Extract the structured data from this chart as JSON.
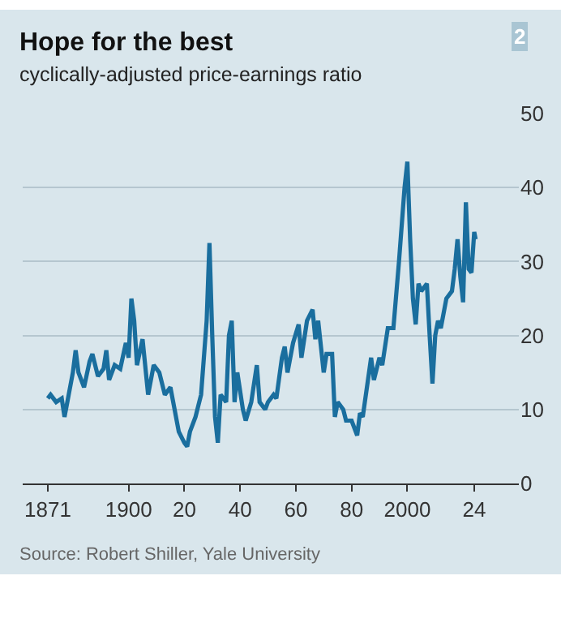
{
  "chart_data": {
    "type": "line",
    "title": "Hope for the best",
    "subtitle": "cyclically-adjusted price-earnings ratio",
    "annotations": [
      "2",
      "Source: Robert Shiller, Yale University"
    ],
    "x": [
      1871,
      1872,
      1874,
      1876,
      1877,
      1878,
      1880,
      1881,
      1882,
      1884,
      1886,
      1887,
      1889,
      1891,
      1892,
      1893,
      1895,
      1897,
      1899,
      1900,
      1901,
      1902,
      1903,
      1905,
      1907,
      1909,
      1911,
      1913,
      1915,
      1917,
      1918,
      1920,
      1921,
      1922,
      1924,
      1926,
      1928,
      1929,
      1930,
      1931,
      1932,
      1933,
      1935,
      1936,
      1937,
      1938,
      1939,
      1941,
      1942,
      1944,
      1946,
      1947,
      1949,
      1950,
      1952,
      1953,
      1955,
      1956,
      1957,
      1959,
      1961,
      1962,
      1964,
      1966,
      1967,
      1968,
      1970,
      1971,
      1973,
      1974,
      1975,
      1977,
      1978,
      1980,
      1982,
      1983,
      1984,
      1987,
      1988,
      1990,
      1991,
      1993,
      1995,
      1997,
      1998,
      1999,
      2000,
      2001,
      2002,
      2003,
      2004,
      2005,
      2007,
      2008,
      2009,
      2010,
      2011,
      2012,
      2014,
      2016,
      2017,
      2018,
      2019,
      2020,
      2021,
      2022,
      2023,
      2024,
      2024.5
    ],
    "series": [
      {
        "color": "#1a6e9e",
        "values": [
          11.5,
          12,
          11,
          11.5,
          9,
          11,
          15,
          18,
          15,
          13,
          16.5,
          17.5,
          14.5,
          15.5,
          18,
          14,
          16,
          15.5,
          19,
          17,
          25,
          22,
          16,
          19.5,
          12,
          16,
          15,
          12,
          13,
          9,
          7,
          5.5,
          5,
          7,
          9,
          12,
          22,
          32.5,
          20,
          9,
          5.5,
          12,
          11,
          20,
          22,
          11,
          15,
          10,
          8.5,
          11,
          16,
          11,
          10,
          11,
          12,
          11.5,
          17,
          18.5,
          15,
          19,
          21.5,
          17,
          22,
          23.5,
          19.5,
          22,
          15,
          17.5,
          17.5,
          9,
          11,
          10,
          8.5,
          8.5,
          6.5,
          9.5,
          9,
          17,
          14,
          17,
          16,
          21,
          21,
          30,
          35,
          40,
          43.5,
          33,
          25,
          21.5,
          27,
          26,
          27,
          20,
          13.5,
          20,
          22,
          21,
          25,
          26,
          29,
          33,
          28,
          24.5,
          38,
          29,
          28.5,
          34,
          33
        ]
      }
    ],
    "xlim": [
      1862,
      2040
    ],
    "xticks": [
      1871,
      1900,
      {
        "value": 1920,
        "label": "20"
      },
      {
        "value": 1940,
        "label": "40"
      },
      {
        "value": 1960,
        "label": "60"
      },
      {
        "value": 1980,
        "label": "80"
      },
      2000,
      {
        "value": 2024,
        "label": "24"
      }
    ],
    "ylim": [
      0,
      50
    ],
    "yticks": [
      0,
      10,
      20,
      30,
      40,
      50
    ],
    "grid": "y"
  }
}
